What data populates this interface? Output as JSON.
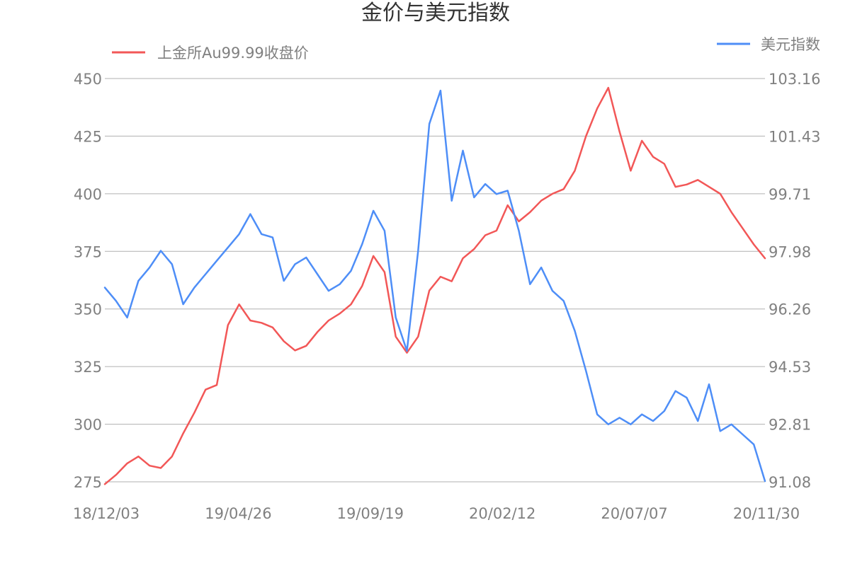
{
  "chart_data": {
    "type": "line",
    "title": "金价与美元指数",
    "x_tick_labels": [
      "18/12/03",
      "19/04/26",
      "19/09/19",
      "20/02/12",
      "20/07/07",
      "20/11/30"
    ],
    "x": [
      "18/12/03",
      "19/01/01",
      "19/02/01",
      "19/03/01",
      "19/04/01",
      "19/04/26",
      "19/05/15",
      "19/06/01",
      "19/06/15",
      "19/07/01",
      "19/07/15",
      "19/08/01",
      "19/08/15",
      "19/09/01",
      "19/09/19",
      "19/10/01",
      "19/10/15",
      "19/11/01",
      "19/11/15",
      "19/12/01",
      "19/12/15",
      "20/01/01",
      "20/01/15",
      "20/02/01",
      "20/02/12",
      "20/02/25",
      "20/03/05",
      "20/03/09",
      "20/03/12",
      "20/03/16",
      "20/03/19",
      "20/03/23",
      "20/03/26",
      "20/04/01",
      "20/04/15",
      "20/05/01",
      "20/05/15",
      "20/06/01",
      "20/06/15",
      "20/07/01",
      "20/07/07",
      "20/07/15",
      "20/07/20",
      "20/07/27",
      "20/08/03",
      "20/08/07",
      "20/08/11",
      "20/08/14",
      "20/08/20",
      "20/09/01",
      "20/09/15",
      "20/10/01",
      "20/10/15",
      "20/10/20",
      "20/11/01",
      "20/11/06",
      "20/11/10",
      "20/11/20",
      "20/11/25",
      "20/11/30"
    ],
    "left_axis": {
      "ticks": [
        275,
        300,
        325,
        350,
        375,
        400,
        425,
        450
      ],
      "ylim": [
        275,
        450
      ]
    },
    "right_axis": {
      "ticks": [
        "91.08",
        "92.81",
        "94.53",
        "96.26",
        "97.98",
        "99.71",
        "101.43",
        "103.16"
      ],
      "ylim": [
        91.08,
        103.16
      ]
    },
    "grid": true,
    "series": [
      {
        "name": "上金所Au99.99收盘价",
        "axis": "left",
        "color": "#f25757",
        "values": [
          274,
          278,
          283,
          286,
          282,
          281,
          286,
          296,
          305,
          315,
          317,
          343,
          352,
          345,
          344,
          342,
          336,
          332,
          334,
          340,
          345,
          348,
          352,
          360,
          373,
          366,
          338,
          331,
          338,
          358,
          364,
          362,
          372,
          376,
          382,
          384,
          395,
          388,
          392,
          397,
          400,
          402,
          410,
          425,
          437,
          446,
          427,
          410,
          423,
          416,
          413,
          403,
          404,
          406,
          403,
          400,
          392,
          385,
          378,
          372
        ]
      },
      {
        "name": "美元指数",
        "axis": "right",
        "color": "#4e8ef7",
        "values": [
          96.9,
          96.5,
          96.0,
          97.1,
          97.5,
          98.0,
          97.6,
          96.4,
          96.9,
          97.3,
          97.7,
          98.1,
          98.5,
          99.1,
          98.5,
          98.4,
          97.1,
          97.6,
          97.8,
          97.3,
          96.8,
          97.0,
          97.4,
          98.2,
          99.2,
          98.6,
          96.0,
          95.0,
          98.0,
          101.8,
          102.8,
          99.5,
          101.0,
          99.6,
          100.0,
          99.7,
          99.8,
          98.6,
          97.0,
          97.5,
          96.8,
          96.5,
          95.6,
          94.4,
          93.1,
          92.8,
          93.0,
          92.8,
          93.1,
          92.9,
          93.2,
          93.8,
          93.6,
          92.9,
          94.0,
          92.6,
          92.8,
          92.5,
          92.2,
          91.1
        ]
      }
    ]
  }
}
